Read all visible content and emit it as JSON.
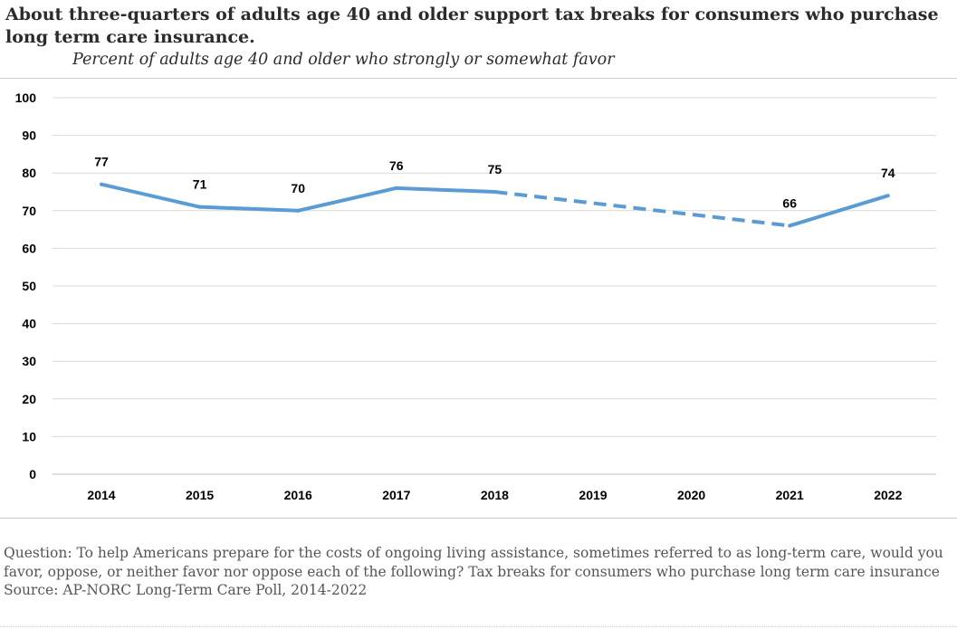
{
  "header": {
    "title": "About three-quarters of adults age 40 and older support tax breaks for consumers who purchase long term care insurance.",
    "subtitle": "Percent of adults age 40 and older who strongly or somewhat favor"
  },
  "footer": {
    "question": "Question: To help Americans prepare for the costs of ongoing living assistance, sometimes referred to as long-term care, would you favor, oppose, or neither favor nor oppose each of the following? Tax breaks for consumers who purchase long term care insurance",
    "source": "Source: AP-NORC Long-Term Care Poll, 2014-2022"
  },
  "chart_data": {
    "type": "line",
    "title": "About three-quarters of adults age 40 and older support tax breaks for consumers who purchase long term care insurance.",
    "subtitle": "Percent of adults age 40 and older who strongly or somewhat favor",
    "xlabel": "",
    "ylabel": "",
    "categories": [
      "2014",
      "2015",
      "2016",
      "2017",
      "2018",
      "2019",
      "2020",
      "2021",
      "2022"
    ],
    "series": [
      {
        "values": [
          77,
          71,
          70,
          76,
          75,
          null,
          null,
          66,
          74
        ],
        "color": "#5b9bd5",
        "dashed_gap_between": [
          "2018",
          "2021"
        ]
      }
    ],
    "data_labels": [
      "77",
      "71",
      "70",
      "76",
      "75",
      "",
      "",
      "66",
      "74"
    ],
    "ylim": [
      0,
      100
    ],
    "yticks": [
      "0",
      "10",
      "20",
      "30",
      "40",
      "50",
      "60",
      "70",
      "80",
      "90",
      "100"
    ],
    "grid": true,
    "legend": "none"
  }
}
